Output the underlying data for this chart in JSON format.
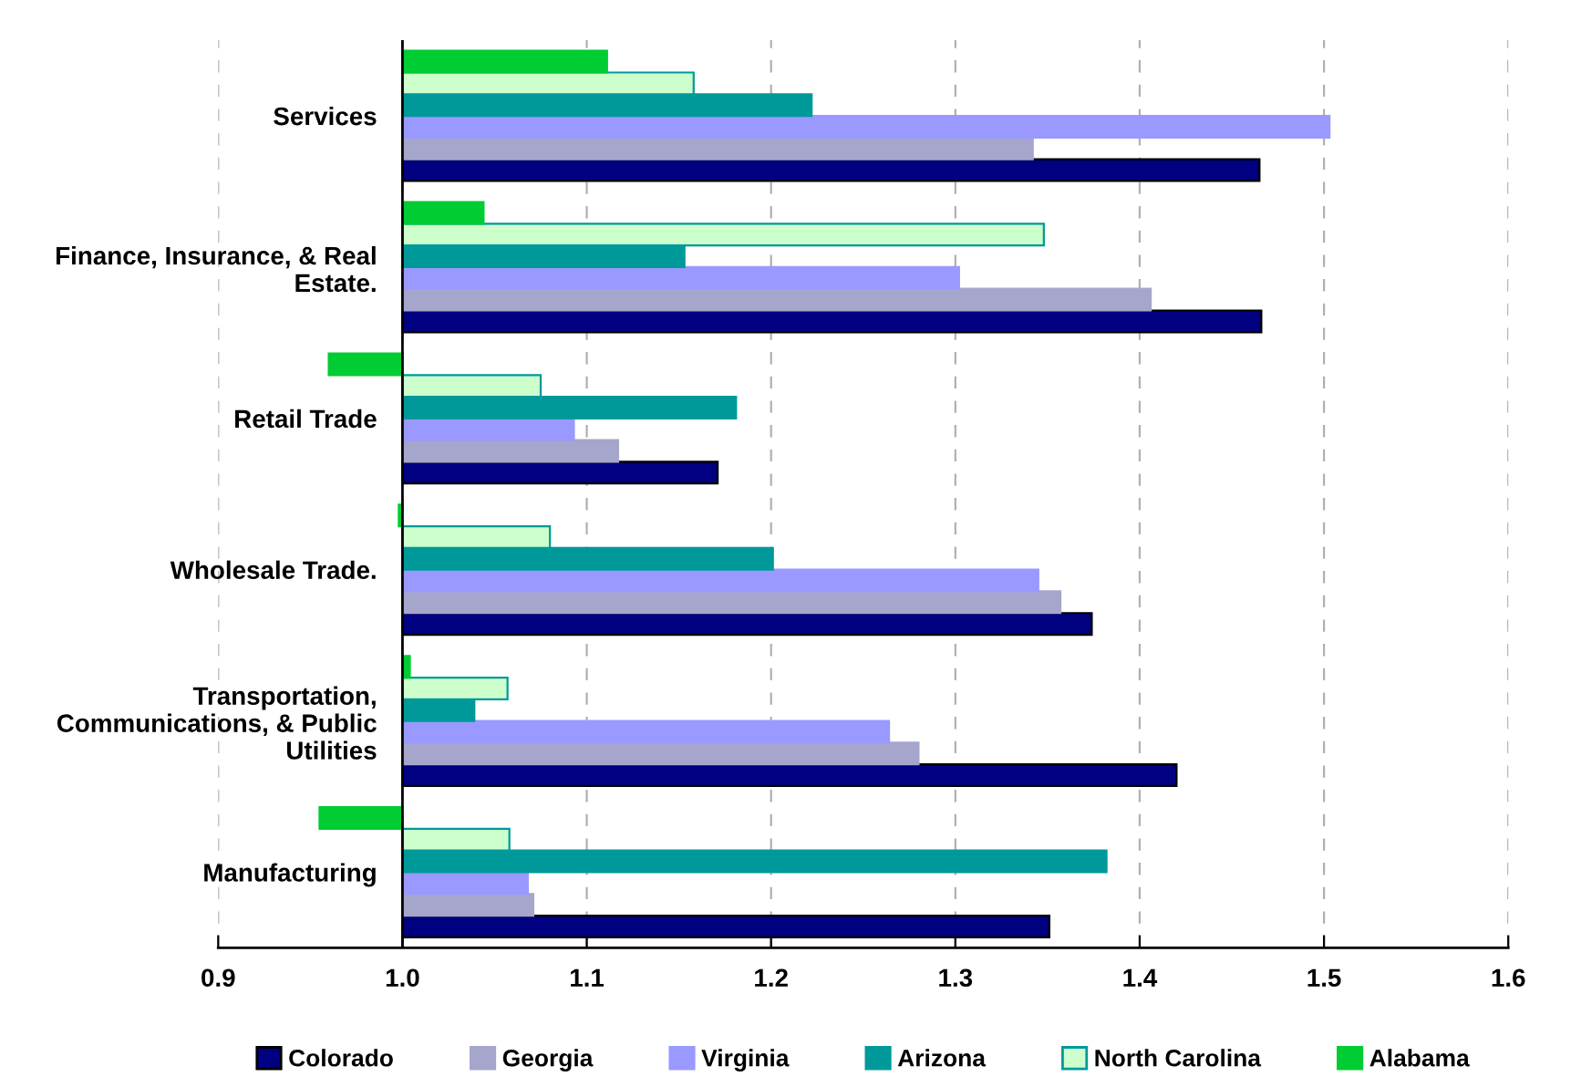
{
  "chart_data": {
    "type": "bar",
    "orientation": "horizontal",
    "categories": [
      "Services",
      "Finance, Insurance, & Real\nEstate.",
      "Retail Trade",
      "Wholesale Trade.",
      "Transportation,\nCommunications, & Public\nUtilities",
      "Manufacturing"
    ],
    "series": [
      {
        "name": "Colorado",
        "color": "#000080",
        "base": [
          1.0,
          1.0,
          1.0,
          1.0,
          1.0,
          1.0
        ],
        "values": [
          0.465,
          0.466,
          0.171,
          0.374,
          0.42,
          0.351
        ]
      },
      {
        "name": "Georgia",
        "color": "#a6a6cc",
        "base": [
          1.0,
          1.0,
          1.0,
          1.0,
          1.0,
          1.0
        ],
        "values": [
          0.342,
          0.406,
          0.117,
          0.357,
          0.28,
          0.071
        ]
      },
      {
        "name": "Virginia",
        "color": "#9999ff",
        "base": [
          1.0,
          1.0,
          1.0,
          1.0,
          1.0,
          1.0
        ],
        "values": [
          0.503,
          0.302,
          0.093,
          0.345,
          0.264,
          0.068
        ]
      },
      {
        "name": "Arizona",
        "color": "#009999",
        "base": [
          1.0,
          1.0,
          1.0,
          1.0,
          1.0,
          1.0
        ],
        "values": [
          0.222,
          0.153,
          0.181,
          0.201,
          0.039,
          0.382
        ]
      },
      {
        "name": "North Carolina",
        "color": "#ccffcc",
        "base": [
          1.0,
          1.0,
          1.0,
          1.0,
          1.0,
          1.0
        ],
        "values": [
          0.158,
          0.348,
          0.075,
          0.08,
          0.057,
          0.058
        ]
      },
      {
        "name": "Alabama",
        "color": "#00cc33",
        "base": [
          1.0,
          1.0,
          1.0,
          1.0,
          1.0,
          1.0
        ],
        "values": [
          0.111,
          0.044,
          -0.04,
          -0.002,
          0.004,
          -0.045
        ]
      }
    ],
    "xlim": [
      0.9,
      1.6
    ],
    "xticks": [
      {
        "value": 0.9,
        "label": "0.9"
      },
      {
        "value": 1.0,
        "label": "1.0"
      },
      {
        "value": 1.1,
        "label": "1.1"
      },
      {
        "value": 1.2,
        "label": "1.2"
      },
      {
        "value": 1.3,
        "label": "1.3"
      },
      {
        "value": 1.4,
        "label": "1.4"
      },
      {
        "value": 1.5,
        "label": "1.5"
      },
      {
        "value": 1.6,
        "label": "1.6"
      }
    ],
    "ref_lines": [
      {
        "axis": "x",
        "value": 1.0,
        "color": "#000000"
      }
    ],
    "grid": "x",
    "legend": "bottom"
  }
}
